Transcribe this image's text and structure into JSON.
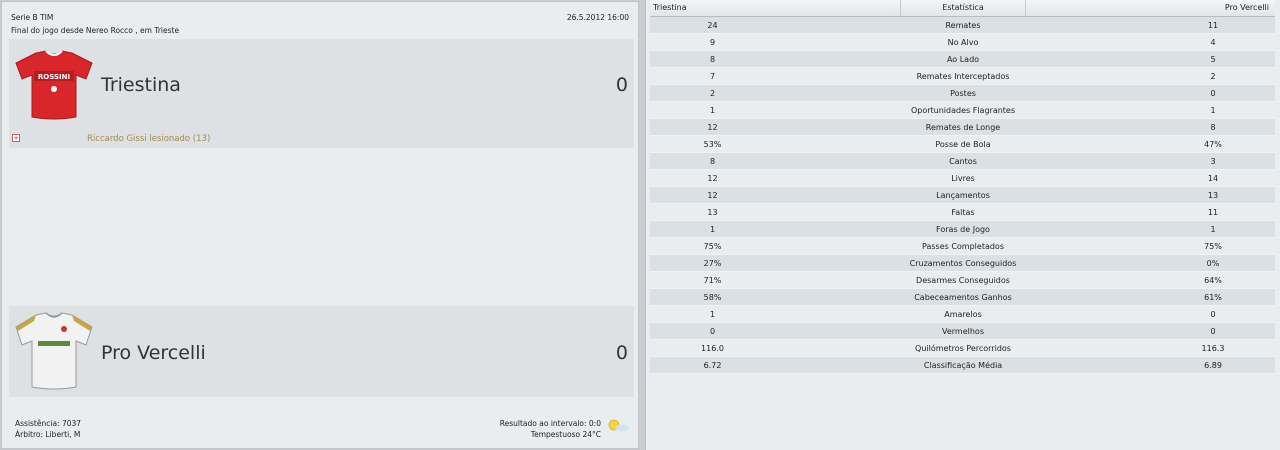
{
  "match": {
    "competition": "Serie B TIM",
    "date_time": "26.5.2012 16:00",
    "status_line": "Final do jogo desde Nereo Rocco , em Trieste"
  },
  "home": {
    "name": "Triestina",
    "score": "0",
    "shirt_sponsor": "ROSSINI",
    "event": "Riccardo Gissi lesionado (13)",
    "expand_symbol": "+",
    "shirt_color": "#d8262a"
  },
  "away": {
    "name": "Pro Vercelli",
    "score": "0",
    "shirt_color": "#f2f2f2"
  },
  "footer": {
    "attendance": "Assistência: 7037",
    "referee": "Árbitro: Liberti, M",
    "halftime": "Resultado ao intervalo: 0:0",
    "weather": "Tempestuoso 24°C",
    "weather_icon": "sun-cloud-icon"
  },
  "stats": {
    "header_home": "Triestina",
    "header_stat": "Estatística",
    "header_away": "Pro Vercelli",
    "rows": [
      {
        "home": "24",
        "label": "Remates",
        "away": "11"
      },
      {
        "home": "9",
        "label": "No Alvo",
        "away": "4"
      },
      {
        "home": "8",
        "label": "Ao Lado",
        "away": "5"
      },
      {
        "home": "7",
        "label": "Remates Interceptados",
        "away": "2"
      },
      {
        "home": "2",
        "label": "Postes",
        "away": "0"
      },
      {
        "home": "1",
        "label": "Oportunidades Flagrantes",
        "away": "1"
      },
      {
        "home": "12",
        "label": "Remates de Longe",
        "away": "8"
      },
      {
        "home": "53%",
        "label": "Posse de Bola",
        "away": "47%"
      },
      {
        "home": "8",
        "label": "Cantos",
        "away": "3"
      },
      {
        "home": "12",
        "label": "Livres",
        "away": "14"
      },
      {
        "home": "12",
        "label": "Lançamentos",
        "away": "13"
      },
      {
        "home": "13",
        "label": "Faltas",
        "away": "11"
      },
      {
        "home": "1",
        "label": "Foras de Jogo",
        "away": "1"
      },
      {
        "home": "75%",
        "label": "Passes Completados",
        "away": "75%"
      },
      {
        "home": "27%",
        "label": "Cruzamentos Conseguidos",
        "away": "0%"
      },
      {
        "home": "71%",
        "label": "Desarmes Conseguidos",
        "away": "64%"
      },
      {
        "home": "58%",
        "label": "Cabeceamentos Ganhos",
        "away": "61%"
      },
      {
        "home": "1",
        "label": "Amarelos",
        "away": "0"
      },
      {
        "home": "0",
        "label": "Vermelhos",
        "away": "0"
      },
      {
        "home": "116.0",
        "label": "Quilómetros Percorridos",
        "away": "116.3"
      },
      {
        "home": "6.72",
        "label": "Classificação Média",
        "away": "6.89"
      }
    ]
  }
}
